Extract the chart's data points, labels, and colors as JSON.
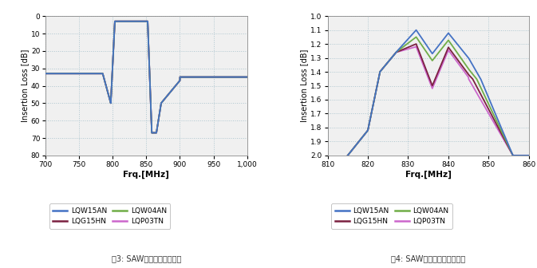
{
  "chart1": {
    "xlabel": "Frq.[MHz]",
    "ylabel": "Insertion Loss [dB]",
    "xlim": [
      700,
      1000
    ],
    "ylim": [
      80,
      0
    ],
    "xticks": [
      700,
      750,
      800,
      850,
      900,
      950,
      1000
    ],
    "yticks": [
      0,
      10,
      20,
      30,
      40,
      50,
      60,
      70,
      80
    ],
    "caption": "図3: SAW滤波器的整体特性"
  },
  "chart2": {
    "xlabel": "Frq.[MHz]",
    "ylabel": "Insertion Loss [dB]",
    "xlim": [
      810,
      860
    ],
    "ylim": [
      2.0,
      1.0
    ],
    "xticks": [
      810,
      820,
      830,
      840,
      850,
      860
    ],
    "yticks": [
      1.0,
      1.1,
      1.2,
      1.3,
      1.4,
      1.5,
      1.6,
      1.7,
      1.8,
      1.9,
      2.0
    ],
    "caption": "図4: SAW滤波器的通频带特性"
  },
  "legend": [
    {
      "label": "LQW15AN",
      "color": "#4472c4"
    },
    {
      "label": "LQG15HN",
      "color": "#7B2040"
    },
    {
      "label": "LQW04AN",
      "color": "#70AD47"
    },
    {
      "label": "LQP03TN",
      "color": "#CC66CC"
    }
  ],
  "bg_color": "#ffffff",
  "plot_bg": "#f0f0f0",
  "grid_color": "#aec6cf",
  "grid_style": ":"
}
